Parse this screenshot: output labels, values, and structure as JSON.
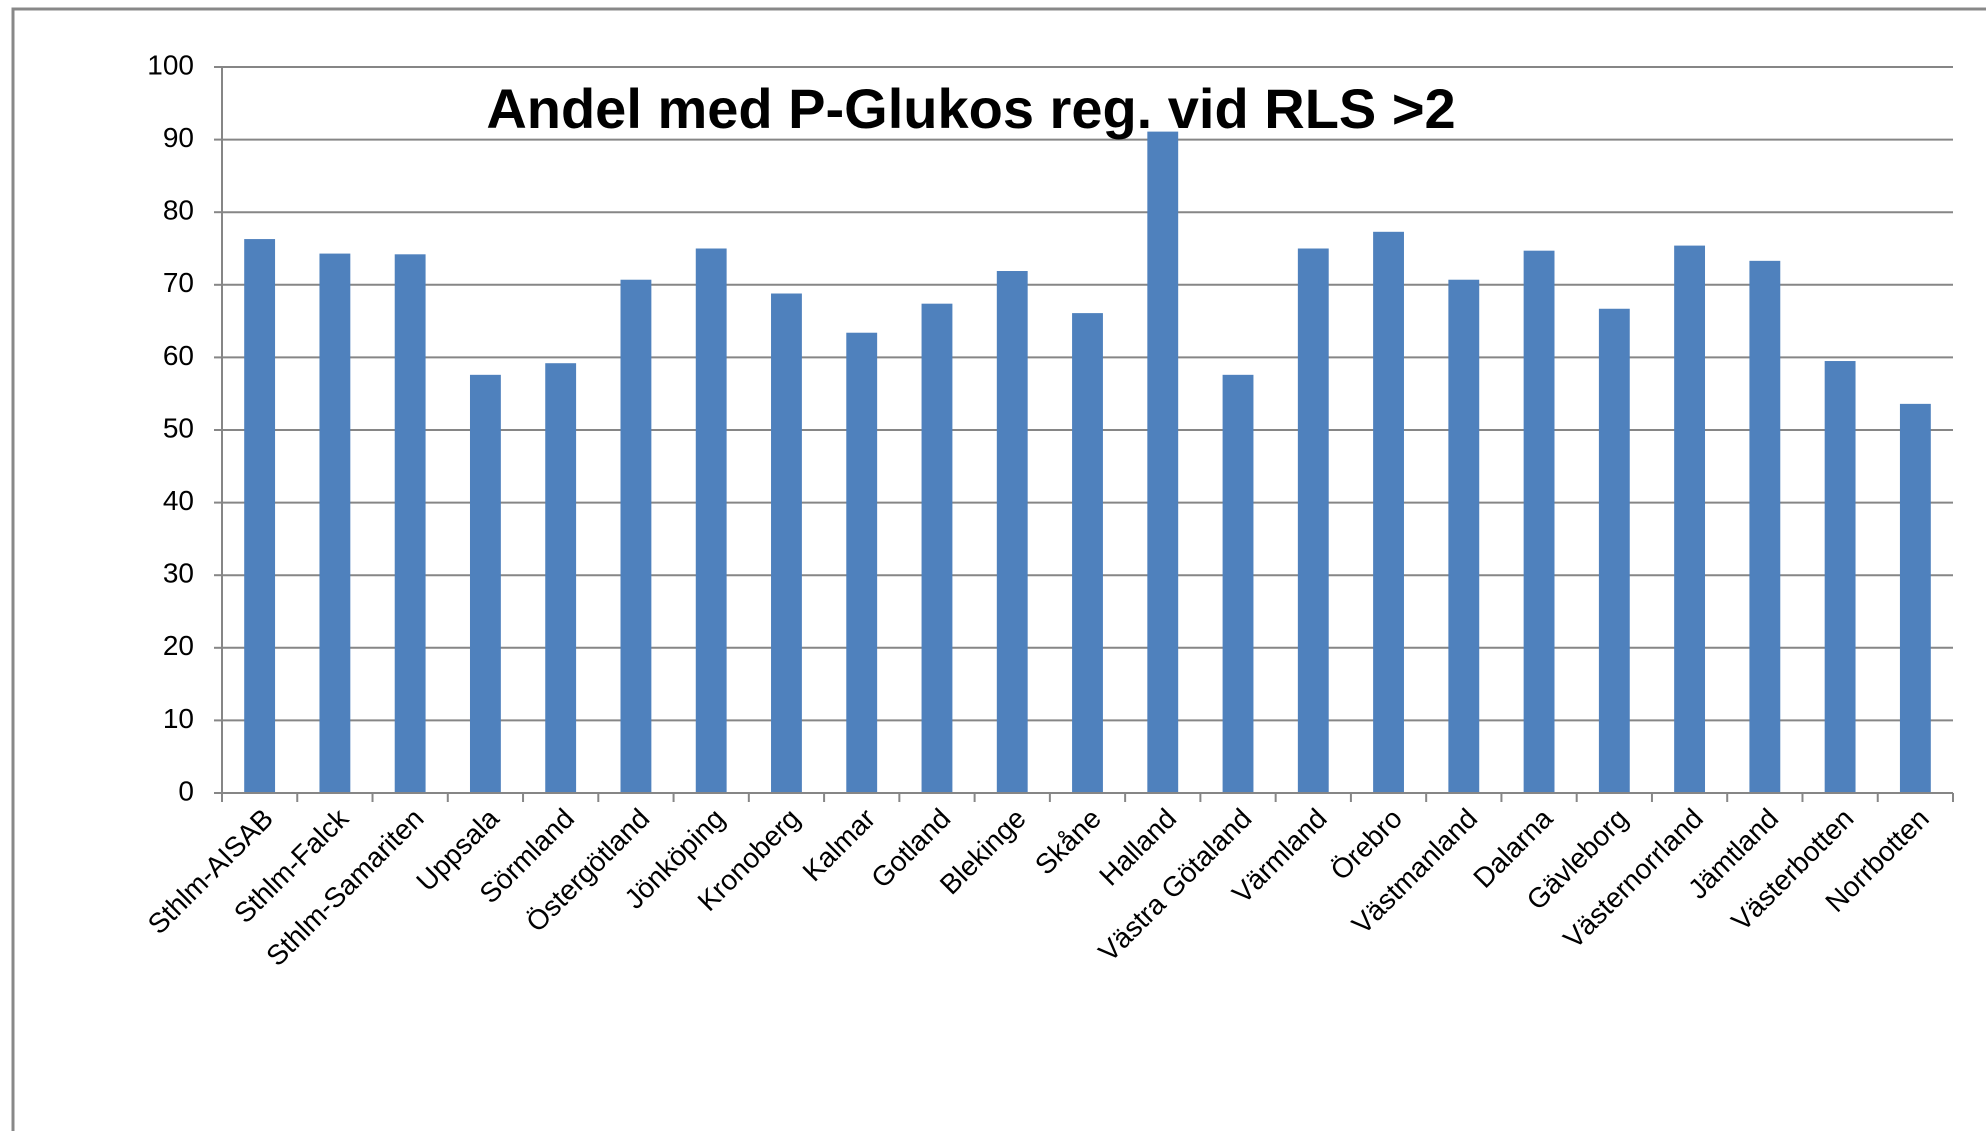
{
  "chart_data": {
    "type": "bar",
    "title": "Andel med P-Glukos reg. vid RLS >2",
    "categories": [
      "Sthlm-AISAB",
      "Sthlm-Falck",
      "Sthlm-Samariten",
      "Uppsala",
      "Sörmland",
      "Östergötland",
      "Jönköping",
      "Kronoberg",
      "Kalmar",
      "Gotland",
      "Blekinge",
      "Skåne",
      "Halland",
      "Västra Götaland",
      "Värmland",
      "Örebro",
      "Västmanland",
      "Dalarna",
      "Gävleborg",
      "Västernorrland",
      "Jämtland",
      "Västerbotten",
      "Norrbotten"
    ],
    "values": [
      76.3,
      74.3,
      74.2,
      57.6,
      59.2,
      70.7,
      75.0,
      68.8,
      63.4,
      67.4,
      71.9,
      66.1,
      91.1,
      57.6,
      75.0,
      77.3,
      70.7,
      74.7,
      66.7,
      75.4,
      73.3,
      59.5,
      53.6
    ],
    "color": "#4f81bd",
    "ylim": [
      0,
      100
    ],
    "yticks": [
      0,
      10,
      20,
      30,
      40,
      50,
      60,
      70,
      80,
      90,
      100
    ],
    "grid": true
  }
}
